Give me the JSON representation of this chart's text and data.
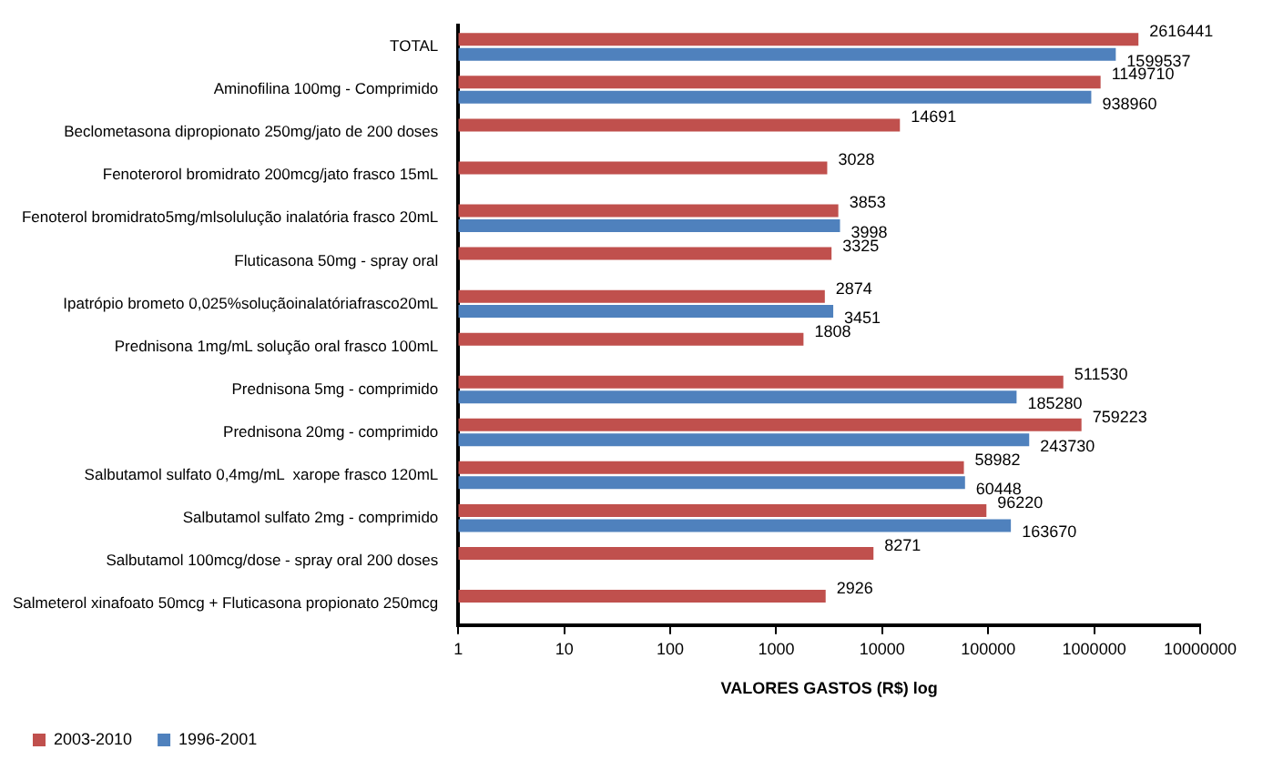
{
  "chart_data": {
    "type": "bar",
    "orientation": "horizontal",
    "log": "x",
    "xlabel": "VALORES GASTOS (R$) log",
    "categories": [
      "TOTAL",
      "Aminofilina 100mg - Comprimido",
      "Beclometasona dipropionato 250mg/jato de 200 doses",
      "Fenoterorol bromidrato 200mcg/jato frasco 15mL",
      "Fenoterol bromidrato5mg/mlsolulução inalatória frasco 20mL",
      "Fluticasona 50mg - spray oral",
      "Ipatrópio brometo 0,025%soluçãoinalatóriafrasco20mL",
      "Prednisona 1mg/mL solução oral frasco 100mL",
      "Prednisona 5mg - comprimido",
      "Prednisona 20mg - comprimido",
      "Salbutamol sulfato 0,4mg/mL  xarope frasco 120mL",
      "Salbutamol sulfato 2mg - comprimido",
      "Salbutamol 100mcg/dose - spray oral 200 doses",
      "Salmeterol xinafoato 50mcg + Fluticasona propionato 250mcg"
    ],
    "series": [
      {
        "name": "2003-2010",
        "color": "#c0504d",
        "values": [
          2616441,
          1149710,
          14691,
          3028,
          3853,
          3325,
          2874,
          1808,
          511530,
          759223,
          58982,
          96220,
          8271,
          2926
        ]
      },
      {
        "name": "1996-2001",
        "color": "#4f81bd",
        "values": [
          1599537,
          938960,
          null,
          null,
          3998,
          null,
          3451,
          null,
          185280,
          243730,
          60448,
          163670,
          null,
          null
        ]
      }
    ],
    "xlim": [
      1,
      10000000
    ],
    "xticks": [
      1,
      10,
      100,
      1000,
      10000,
      100000,
      1000000,
      10000000
    ],
    "data_labels": true,
    "legend": "bottom left"
  }
}
